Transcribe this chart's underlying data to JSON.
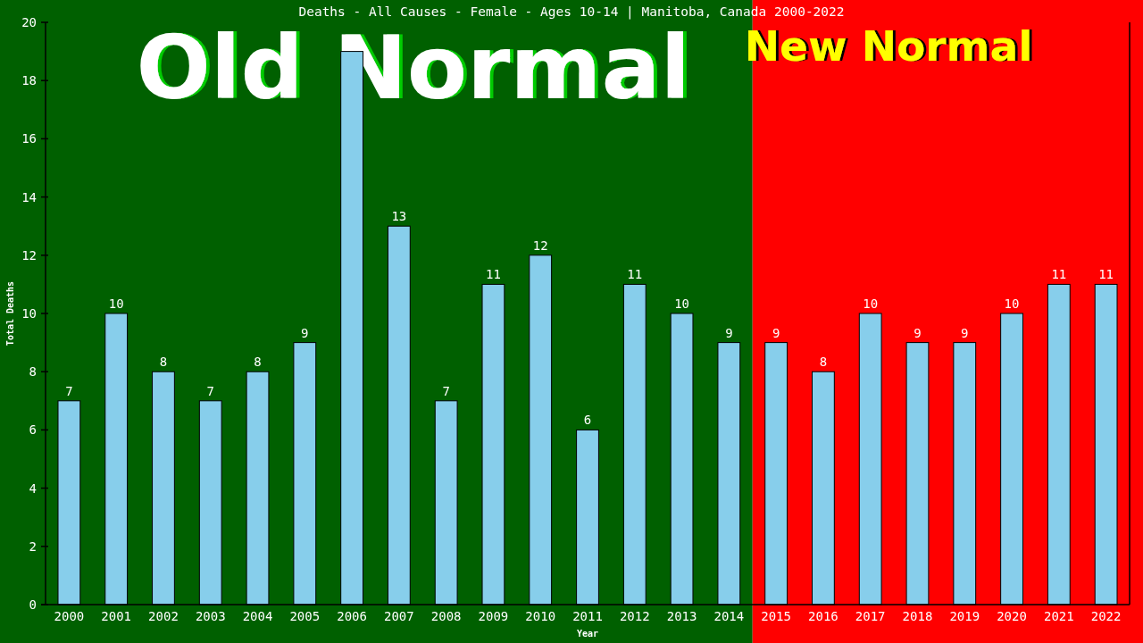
{
  "chart_data": {
    "type": "bar",
    "title": "Deaths - All Causes - Female - Ages 10-14 | Manitoba, Canada 2000-2022",
    "xlabel": "Year",
    "ylabel": "Total Deaths",
    "categories": [
      "2000",
      "2001",
      "2002",
      "2003",
      "2004",
      "2005",
      "2006",
      "2007",
      "2008",
      "2009",
      "2010",
      "2011",
      "2012",
      "2013",
      "2014",
      "2015",
      "2016",
      "2017",
      "2018",
      "2019",
      "2020",
      "2021",
      "2022"
    ],
    "values": [
      7,
      10,
      8,
      7,
      8,
      9,
      19,
      13,
      7,
      11,
      12,
      6,
      11,
      10,
      9,
      9,
      8,
      10,
      9,
      9,
      10,
      11,
      11
    ],
    "value_labels": [
      "7",
      "10",
      "8",
      "7",
      "8",
      "9",
      null,
      "13",
      "7",
      "11",
      "12",
      "6",
      "11",
      "10",
      "9",
      "9",
      "8",
      "10",
      "9",
      "9",
      "10",
      "11",
      "11"
    ],
    "color": "#87ceeb",
    "ylim": [
      0,
      20
    ],
    "yticks": [
      0,
      2,
      4,
      6,
      8,
      10,
      12,
      14,
      16,
      18,
      20
    ],
    "bands": [
      {
        "axis": "x",
        "from": "2000",
        "to": "2014",
        "label": "Old Normal",
        "color": "#006000"
      },
      {
        "axis": "x",
        "from": "2015",
        "to": "2022",
        "label": "New Normal",
        "color": "#ff0000"
      }
    ]
  }
}
